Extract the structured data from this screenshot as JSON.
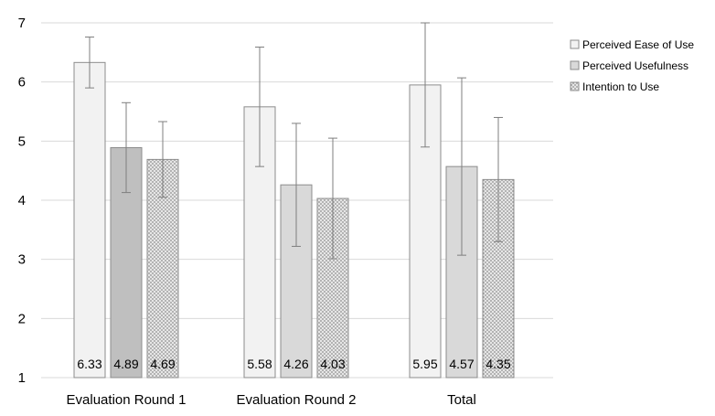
{
  "chart_data": {
    "type": "bar",
    "title": "",
    "xlabel": "",
    "ylabel": "",
    "ylim": [
      1,
      7
    ],
    "yticks": [
      1,
      2,
      3,
      4,
      5,
      6,
      7
    ],
    "grid": true,
    "legend_position": "right",
    "categories": [
      "Evaluation Round 1",
      "Evaluation Round 2",
      "Total"
    ],
    "series": [
      {
        "name": "Perceived Ease of Use",
        "values": [
          6.33,
          5.58,
          5.95
        ],
        "error_low": [
          5.9,
          4.57,
          4.9
        ],
        "error_high": [
          6.76,
          6.59,
          7.0
        ],
        "data_labels": [
          "6.33",
          "5.58",
          "5.95"
        ],
        "fill": "#f2f2f2",
        "pattern": "solid"
      },
      {
        "name": "Perceived Usefulness",
        "values": [
          4.89,
          4.26,
          4.57
        ],
        "error_low": [
          4.13,
          3.22,
          3.07
        ],
        "error_high": [
          5.65,
          5.3,
          6.07
        ],
        "data_labels": [
          "4.89",
          "4.26",
          "4.57"
        ],
        "fill": "#d9d9d9",
        "fills_per_point": [
          "#bfbfbf",
          "#d9d9d9",
          "#d9d9d9"
        ],
        "pattern": "solid"
      },
      {
        "name": "Intention to Use",
        "values": [
          4.69,
          4.03,
          4.35
        ],
        "error_low": [
          4.05,
          3.01,
          3.3
        ],
        "error_high": [
          5.33,
          5.05,
          5.4
        ],
        "data_labels": [
          "4.69",
          "4.03",
          "4.35"
        ],
        "fill": "#d9d9d9",
        "pattern": "dots"
      }
    ]
  },
  "colors": {
    "gridline": "#d9d9d9",
    "bar_stroke": "#8c8c8c",
    "error_bar": "#7f7f7f",
    "text": "#000000"
  }
}
